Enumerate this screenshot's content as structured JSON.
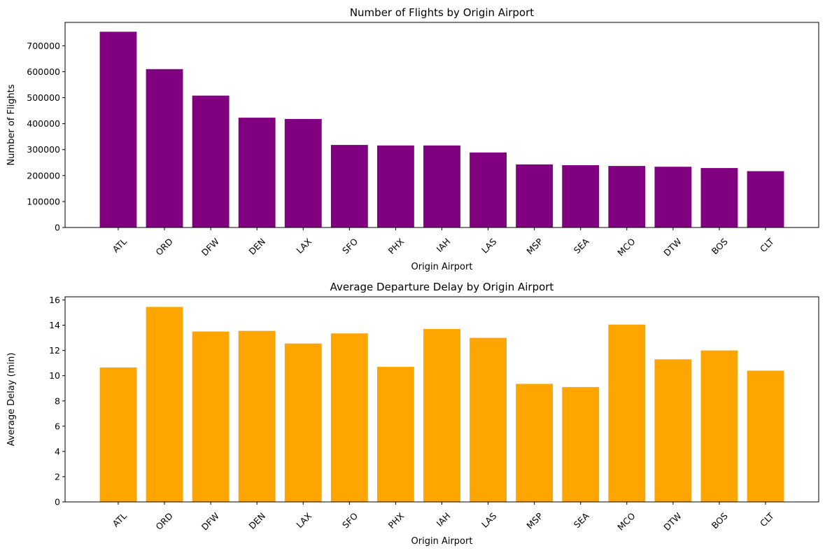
{
  "chart_data": [
    {
      "type": "bar",
      "title": "Number of Flights by Origin Airport",
      "xlabel": "Origin Airport",
      "ylabel": "Number of Flights",
      "categories": [
        "ATL",
        "ORD",
        "DFW",
        "DEN",
        "LAX",
        "SFO",
        "PHX",
        "IAH",
        "LAS",
        "MSP",
        "SEA",
        "MCO",
        "DTW",
        "BOS",
        "CLT"
      ],
      "values": [
        754000,
        610000,
        508000,
        423000,
        418000,
        318000,
        316000,
        316000,
        289000,
        243000,
        240000,
        237000,
        234000,
        229000,
        217000
      ],
      "ylim": [
        0,
        790000
      ],
      "yticks": [
        0,
        100000,
        200000,
        300000,
        400000,
        500000,
        600000,
        700000
      ],
      "ytick_labels": [
        "0",
        "100000",
        "200000",
        "300000",
        "400000",
        "500000",
        "600000",
        "700000"
      ],
      "color": "#800080",
      "grid": false
    },
    {
      "type": "bar",
      "title": "Average Departure Delay by Origin Airport",
      "xlabel": "Origin Airport",
      "ylabel": "Average Delay (min)",
      "categories": [
        "ATL",
        "ORD",
        "DFW",
        "DEN",
        "LAX",
        "SFO",
        "PHX",
        "IAH",
        "LAS",
        "MSP",
        "SEA",
        "MCO",
        "DTW",
        "BOS",
        "CLT"
      ],
      "values": [
        10.65,
        15.45,
        13.5,
        13.55,
        12.55,
        13.35,
        10.7,
        13.7,
        13.0,
        9.35,
        9.1,
        14.05,
        11.3,
        12.0,
        10.4
      ],
      "ylim": [
        0,
        16.25
      ],
      "yticks": [
        0,
        2,
        4,
        6,
        8,
        10,
        12,
        14,
        16
      ],
      "ytick_labels": [
        "0",
        "2",
        "4",
        "6",
        "8",
        "10",
        "12",
        "14",
        "16"
      ],
      "color": "#FFA500",
      "grid": false
    }
  ]
}
